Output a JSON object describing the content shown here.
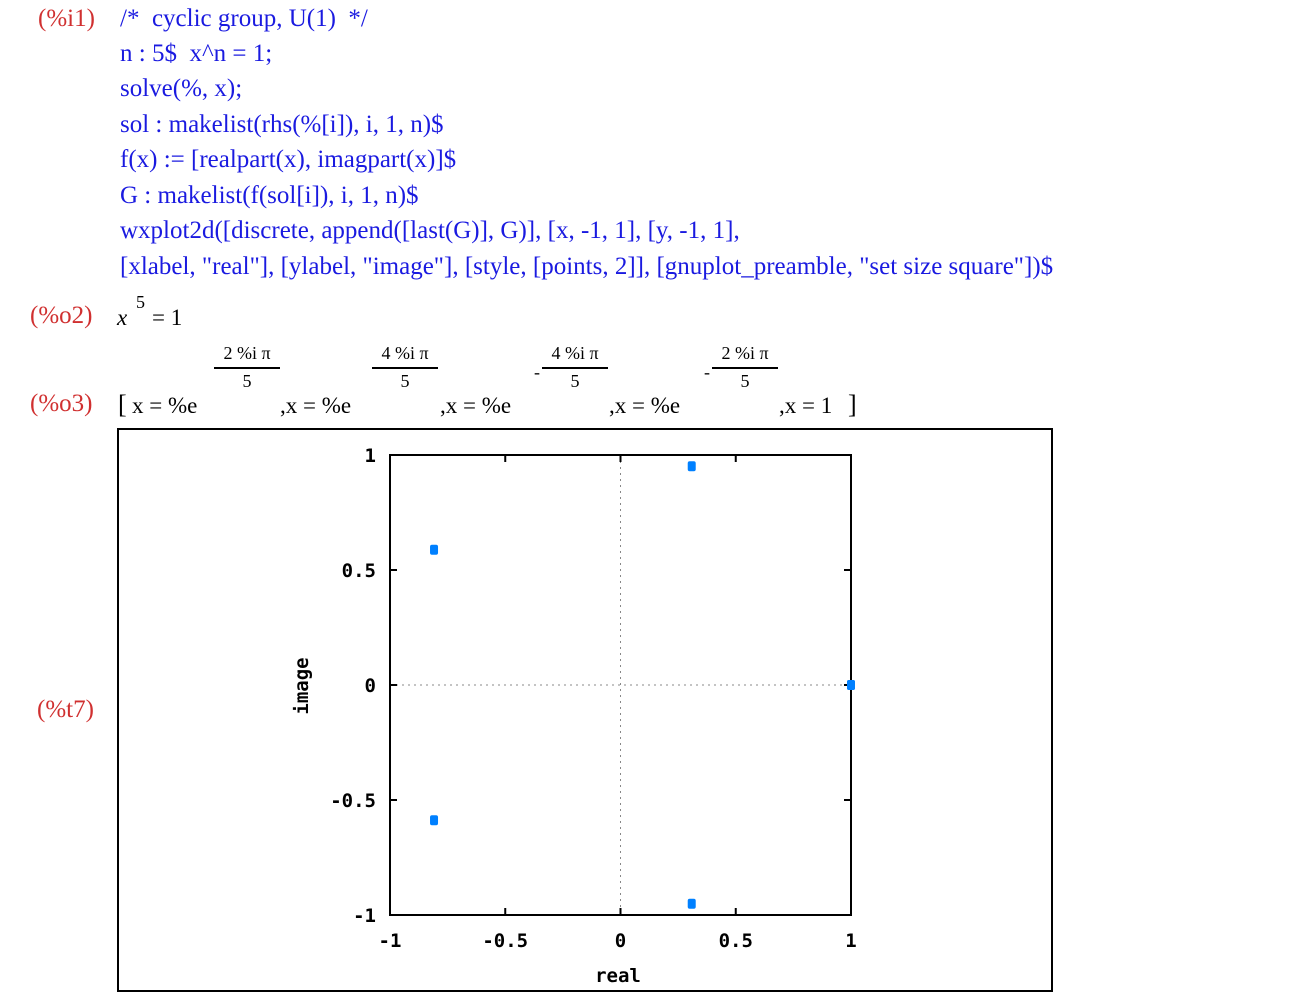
{
  "input": {
    "label": "(%i1)",
    "lines": [
      "/*  cyclic group, U(1)  */",
      "n : 5$  x^n = 1;",
      "solve(%, x);",
      "sol : makelist(rhs(%[i]), i, 1, n)$",
      "f(x) := [realpart(x), imagpart(x)]$",
      "G : makelist(f(sol[i]), i, 1, n)$",
      "wxplot2d([discrete, append([last(G)], G)], [x, -1, 1], [y, -1, 1],",
      "[xlabel, \"real\"], [ylabel, \"image\"], [style, [points, 2]], [gnuplot_preamble, \"set size square\"])$"
    ]
  },
  "output2": {
    "label": "(%o2)",
    "base": "x",
    "exponent": "5",
    "rhs": "= 1"
  },
  "output3": {
    "label": "(%o3)",
    "open": "[",
    "close": "]",
    "terms": [
      {
        "prefix": "x = %e",
        "num": "2 %i π",
        "den": "5",
        "sign": ""
      },
      {
        "prefix": ",x = %e",
        "num": "4 %i π",
        "den": "5",
        "sign": ""
      },
      {
        "prefix": ",x = %e",
        "num": "4 %i π",
        "den": "5",
        "sign": "-"
      },
      {
        "prefix": ",x = %e",
        "num": "2 %i π",
        "den": "5",
        "sign": "-"
      }
    ],
    "last": ",x = 1"
  },
  "plot_label": "(%t7)",
  "chart_data": {
    "type": "scatter",
    "xlabel": "real",
    "ylabel": "image",
    "xlim": [
      -1,
      1
    ],
    "ylim": [
      -1,
      1
    ],
    "xticks": [
      "-1",
      "-0.5",
      "0",
      "0.5",
      "1"
    ],
    "yticks": [
      "-1",
      "-0.5",
      "0",
      "0.5",
      "1"
    ],
    "zero_axes_dotted": true,
    "marker_color": "#0080ff",
    "points": [
      {
        "x": 1,
        "y": 0
      },
      {
        "x": 0.309,
        "y": 0.951
      },
      {
        "x": -0.809,
        "y": 0.588
      },
      {
        "x": -0.809,
        "y": -0.588
      },
      {
        "x": 0.309,
        "y": -0.951
      },
      {
        "x": 1,
        "y": 0
      }
    ]
  }
}
